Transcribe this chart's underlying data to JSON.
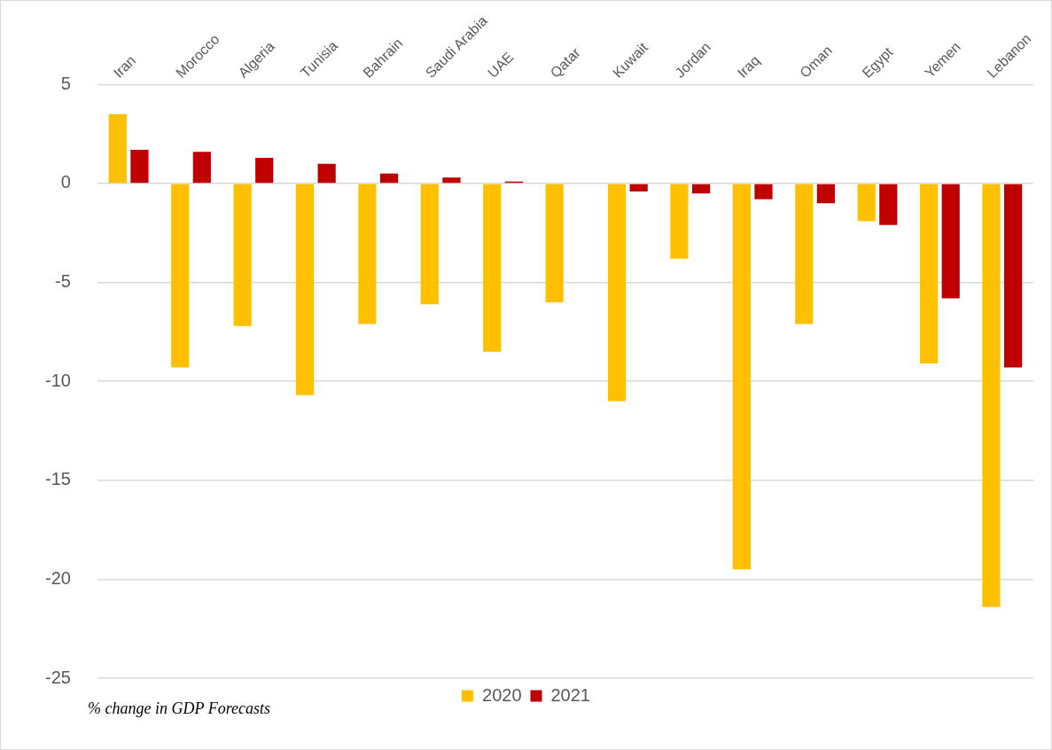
{
  "chart_data": {
    "type": "bar",
    "categories": [
      "Iran",
      "Morocco",
      "Algeria",
      "Tunisia",
      "Bahrain",
      "Saudi Arabia",
      "UAE",
      "Qatar",
      "Kuwait",
      "Jordan",
      "Iraq",
      "Oman",
      "Egypt",
      "Yemen",
      "Lebanon"
    ],
    "series": [
      {
        "name": "2020",
        "color": "#ffc000",
        "values": [
          3.5,
          -9.3,
          -7.2,
          -10.7,
          -7.1,
          -6.1,
          -8.5,
          -6.0,
          -11.0,
          -3.8,
          -19.5,
          -7.1,
          -1.9,
          -9.1,
          -21.4
        ]
      },
      {
        "name": "2021",
        "color": "#c00000",
        "values": [
          1.7,
          1.6,
          1.3,
          1.0,
          0.5,
          0.3,
          0.1,
          0.0,
          -0.4,
          -0.5,
          -0.8,
          -1.0,
          -2.1,
          -5.8,
          -9.3
        ]
      }
    ],
    "ylim": [
      -25,
      5
    ],
    "yticks": [
      -25,
      -20,
      -15,
      -10,
      -5,
      0,
      5
    ],
    "grid": "y",
    "legend": "bottom",
    "annotations": [
      "% change in GDP Forecasts"
    ]
  }
}
